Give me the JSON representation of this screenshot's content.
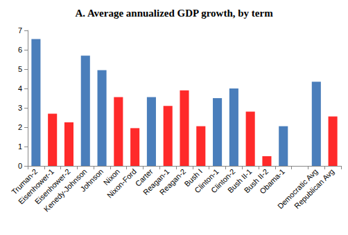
{
  "chart_data": {
    "type": "bar",
    "title": "A. Average annualized GDP growth, by term",
    "categories": [
      "Truman-2",
      "Eisenhower-1",
      "Eisenhower-2",
      "Kenedy-Johnson",
      "Johnson",
      "Nixon",
      "Nixon-Ford",
      "Carter",
      "Reagan-1",
      "Reagan-2",
      "Bush I",
      "Clinton-1",
      "Clinton-2",
      "Bush II-1",
      "Bush II-2",
      "Obama-1",
      null,
      "Democratic Avg",
      "Republican Avg"
    ],
    "values": [
      6.55,
      2.7,
      2.25,
      5.7,
      4.95,
      3.55,
      1.95,
      3.55,
      3.1,
      3.9,
      2.05,
      3.5,
      4.0,
      2.8,
      0.5,
      2.05,
      null,
      4.35,
      2.55
    ],
    "colors": [
      "#4a7ebb",
      "#ff2a2a",
      "#ff2a2a",
      "#4a7ebb",
      "#4a7ebb",
      "#ff2a2a",
      "#ff2a2a",
      "#4a7ebb",
      "#ff2a2a",
      "#ff2a2a",
      "#ff2a2a",
      "#4a7ebb",
      "#4a7ebb",
      "#ff2a2a",
      "#ff2a2a",
      "#4a7ebb",
      null,
      "#4a7ebb",
      "#ff2a2a"
    ],
    "ylim": [
      0,
      7
    ],
    "yticks": [
      0,
      1,
      2,
      3,
      4,
      5,
      6,
      7
    ],
    "grid": false
  }
}
